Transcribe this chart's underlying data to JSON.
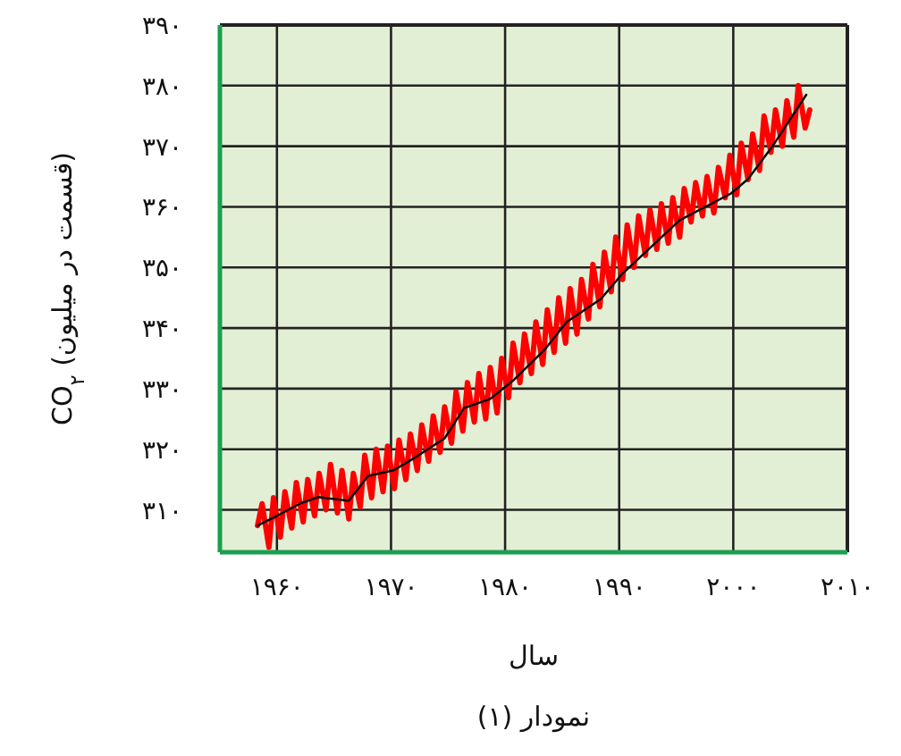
{
  "chart_data": {
    "type": "line",
    "ylabel": "CO$_{۲}$ (قسمت در میلیون)",
    "xlabel": "سال",
    "annotations": [
      "نمودار (۱)"
    ],
    "xlim": [
      1955,
      2010
    ],
    "ylim": [
      303,
      390
    ],
    "xticks": [
      {
        "value": 1960,
        "label": "۱۹۶۰"
      },
      {
        "value": 1970,
        "label": "۱۹۷۰"
      },
      {
        "value": 1980,
        "label": "۱۹۸۰"
      },
      {
        "value": 1990,
        "label": "۱۹۹۰"
      },
      {
        "value": 2000,
        "label": "۲۰۰۰"
      },
      {
        "value": 2010,
        "label": "۲۰۱۰"
      }
    ],
    "yticks": [
      {
        "value": 310,
        "label": "۳۱۰"
      },
      {
        "value": 320,
        "label": "۳۲۰"
      },
      {
        "value": 330,
        "label": "۳۳۰"
      },
      {
        "value": 340,
        "label": "۳۴۰"
      },
      {
        "value": 350,
        "label": "۳۵۰"
      },
      {
        "value": 360,
        "label": "۳۶۰"
      },
      {
        "value": 370,
        "label": "۳۷۰"
      },
      {
        "value": 380,
        "label": "۳۸۰"
      },
      {
        "value": 390,
        "label": "۳۹۰"
      }
    ],
    "grid": true,
    "series": [
      {
        "color": "#ff0000",
        "x": [
          1958.3,
          1958.7,
          1959.3,
          1959.7,
          1960.3,
          1960.7,
          1961.3,
          1961.7,
          1962.3,
          1962.7,
          1963.3,
          1963.7,
          1964.3,
          1964.7,
          1965.3,
          1965.7,
          1966.3,
          1966.7,
          1967.3,
          1967.7,
          1968.3,
          1968.7,
          1969.3,
          1969.7,
          1970.3,
          1970.7,
          1971.3,
          1971.7,
          1972.3,
          1972.7,
          1973.3,
          1973.7,
          1974.3,
          1974.7,
          1975.3,
          1975.7,
          1976.3,
          1976.7,
          1977.3,
          1977.7,
          1978.3,
          1978.7,
          1979.3,
          1979.7,
          1980.3,
          1980.7,
          1981.3,
          1981.7,
          1982.3,
          1982.7,
          1983.3,
          1983.7,
          1984.3,
          1984.7,
          1985.3,
          1985.7,
          1986.3,
          1986.7,
          1987.3,
          1987.7,
          1988.3,
          1988.7,
          1989.3,
          1989.7,
          1990.3,
          1990.7,
          1991.3,
          1991.7,
          1992.3,
          1992.7,
          1993.3,
          1993.7,
          1994.3,
          1994.7,
          1995.3,
          1995.7,
          1996.3,
          1996.7,
          1997.3,
          1997.7,
          1998.3,
          1998.7,
          1999.3,
          1999.7,
          2000.3,
          2000.7,
          2001.3,
          2001.7,
          2002.3,
          2002.7,
          2003.3,
          2003.7,
          2004.3,
          2004.7,
          2005.3,
          2005.7,
          2006.3,
          2006.7
        ],
        "values": [
          307.4,
          311,
          303.8,
          312,
          305.5,
          313,
          307,
          314.5,
          308,
          315,
          309,
          316,
          310,
          317.5,
          309.5,
          316.5,
          308.5,
          316,
          310.5,
          319,
          312,
          320,
          313,
          320.5,
          313.5,
          321.5,
          315,
          322.5,
          316.5,
          324,
          318,
          325.5,
          319.5,
          327,
          321,
          329.5,
          323,
          331,
          324.5,
          332.5,
          325,
          333.5,
          326,
          335,
          328.5,
          337.5,
          331,
          339,
          332.5,
          341,
          334,
          343,
          336,
          345,
          337.5,
          346.5,
          339,
          348,
          341.5,
          350.5,
          343.5,
          352.5,
          346,
          355,
          348,
          357,
          350,
          358.5,
          352,
          359.5,
          353,
          360.5,
          354,
          361.5,
          355,
          363,
          357.5,
          364,
          358.5,
          365,
          359,
          366.5,
          361.5,
          368.5,
          362,
          370.5,
          364.5,
          372,
          366,
          375,
          369,
          376,
          370,
          377.5,
          371.5,
          380,
          373,
          376
        ]
      },
      {
        "color": "#000000",
        "x": [
          1958.3,
          1960,
          1962,
          1963.6,
          1966.3,
          1968,
          1970.2,
          1972,
          1974.7,
          1976.4,
          1978.7,
          1980.8,
          1983.5,
          1985.4,
          1988.4,
          1990.3,
          1995.3,
          1999.8,
          2001.3,
          2003.4,
          2006.4
        ],
        "values": [
          307.4,
          309,
          311,
          312.1,
          311.5,
          315.6,
          316.5,
          318.5,
          321.8,
          326.8,
          328.3,
          331.5,
          336.5,
          341,
          344.8,
          349,
          357.8,
          362.2,
          364.6,
          369.9,
          378.5
        ]
      }
    ]
  }
}
